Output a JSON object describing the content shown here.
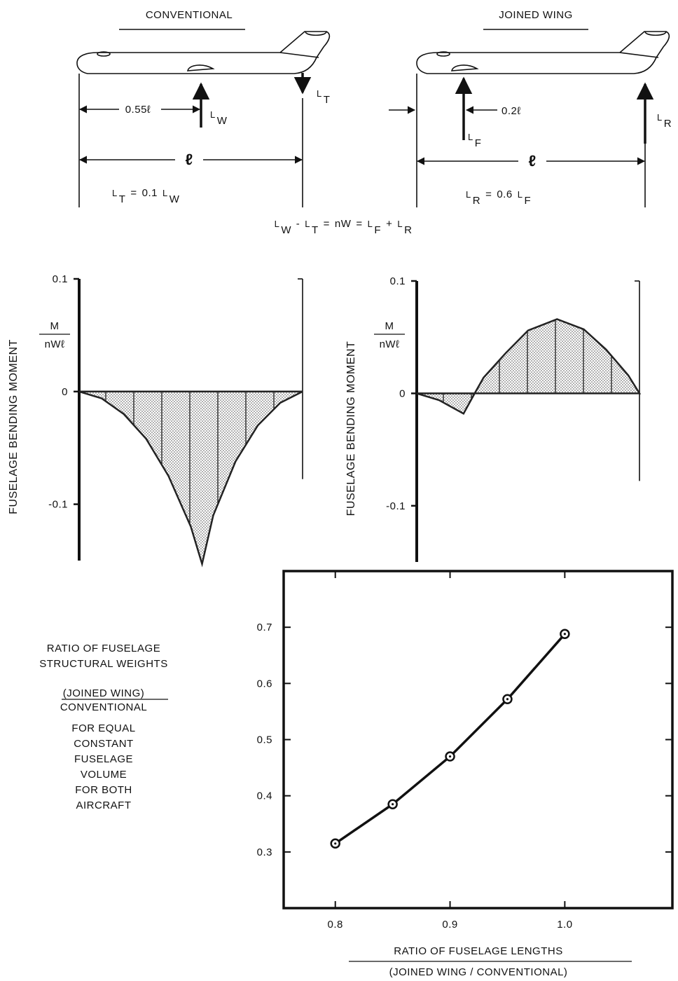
{
  "diagram": {
    "conventional": {
      "title": "CONVENTIONAL",
      "wing_distance": "0.55ℓ",
      "wing_lift": [
        [
          "L",
          "W"
        ]
      ],
      "tail_lift": [
        [
          "L",
          "T"
        ]
      ],
      "length": "ℓ",
      "relation": [
        [
          "L",
          "T"
        ],
        "=",
        "0.1",
        [
          "L",
          "W"
        ]
      ]
    },
    "joined_wing": {
      "title": "JOINED WING",
      "front_distance": "0.2ℓ",
      "front_lift": [
        [
          "L",
          "F"
        ]
      ],
      "rear_lift": [
        [
          "L",
          "R"
        ]
      ],
      "length": "ℓ",
      "relation": [
        [
          "L",
          "R"
        ],
        "=",
        "0.6",
        [
          "L",
          "F"
        ]
      ]
    },
    "equation": [
      [
        "L",
        "W"
      ],
      "-",
      [
        "L",
        "T"
      ],
      "=",
      "nW",
      "=",
      [
        "L",
        "F"
      ],
      "+",
      [
        "L",
        "R"
      ]
    ]
  },
  "chart_data": [
    {
      "type": "area",
      "ylabel": "FUSELAGE BENDING MOMENT",
      "ylabel_fraction": [
        "M",
        "nWℓ"
      ],
      "x": [
        0,
        0.1,
        0.2,
        0.3,
        0.4,
        0.5,
        0.55,
        0.6,
        0.7,
        0.8,
        0.9,
        1.0
      ],
      "values": [
        0,
        -0.006,
        -0.02,
        -0.042,
        -0.075,
        -0.12,
        -0.153,
        -0.11,
        -0.062,
        -0.03,
        -0.01,
        0
      ],
      "xlim": [
        0,
        1
      ],
      "ylim": [
        -0.15,
        0.1
      ],
      "yticks": [
        0.1,
        0,
        -0.1
      ],
      "color": "#222222"
    },
    {
      "type": "area",
      "ylabel": "FUSELAGE BENDING MOMENT",
      "ylabel_fraction": [
        "M",
        "nWℓ"
      ],
      "x": [
        0,
        0.1,
        0.21,
        0.26,
        0.3,
        0.4,
        0.5,
        0.63,
        0.75,
        0.85,
        0.95,
        1.0
      ],
      "values": [
        0,
        -0.006,
        -0.018,
        0,
        0.014,
        0.036,
        0.056,
        0.066,
        0.057,
        0.039,
        0.016,
        0
      ],
      "xlim": [
        0,
        1
      ],
      "ylim": [
        -0.15,
        0.1
      ],
      "yticks": [
        0.1,
        0,
        -0.1
      ],
      "color": "#222222"
    },
    {
      "type": "line",
      "ylabel": [
        "RATIO OF FUSELAGE",
        "STRUCTURAL WEIGHTS"
      ],
      "ylabel_ratio": [
        "(JOINED WING)",
        "CONVENTIONAL"
      ],
      "ylabel_note": [
        "FOR EQUAL",
        "CONSTANT",
        "FUSELAGE",
        "VOLUME",
        "FOR BOTH",
        "AIRCRAFT"
      ],
      "xlabel": [
        "RATIO OF FUSELAGE LENGTHS",
        "(JOINED WING / CONVENTIONAL)"
      ],
      "x": [
        0.8,
        0.85,
        0.9,
        0.95,
        1.0
      ],
      "values": [
        0.315,
        0.385,
        0.47,
        0.572,
        0.688
      ],
      "xlim": [
        0.755,
        1.095
      ],
      "ylim": [
        0.2,
        0.8
      ],
      "xticks": [
        0.8,
        0.9,
        {
          "value": 1,
          "label": "1.0"
        }
      ],
      "yticks": [
        0.3,
        0.4,
        0.5,
        0.6,
        0.7
      ],
      "color": "#111111"
    }
  ]
}
